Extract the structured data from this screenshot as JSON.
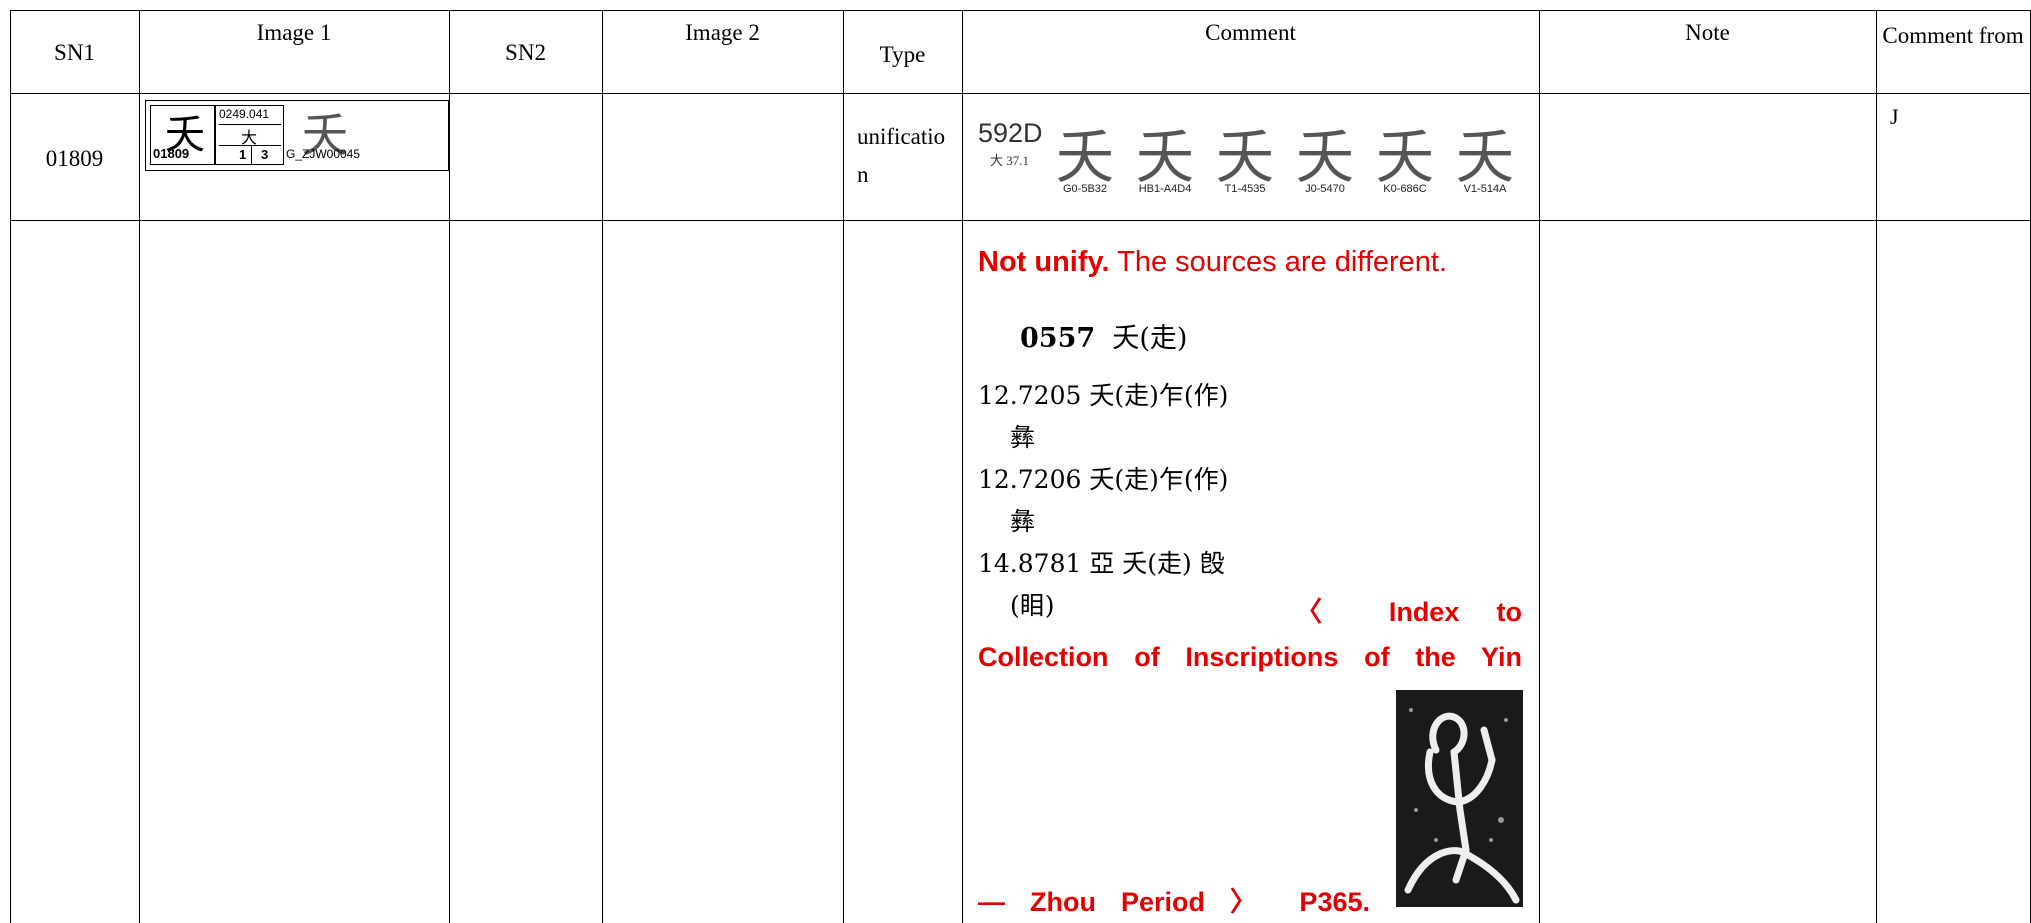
{
  "header": {
    "columns": [
      "SN1",
      "Image 1",
      "SN2",
      "Image 2",
      "Type",
      "Comment",
      "Note",
      "Comment from"
    ]
  },
  "rows": [
    {
      "sn1": "01809",
      "image1": {
        "glyph": "夭",
        "code": "0249.041",
        "radical": "大",
        "sn": "01809",
        "stroke_a": "1",
        "stroke_b": "3",
        "glyph2": "夭",
        "source": "G_ZJW00045"
      },
      "type": "unification",
      "comment": {
        "code": "592D",
        "radical": "大 37.1",
        "glyphs": [
          {
            "char": "夭",
            "source": "G0-5B32"
          },
          {
            "char": "夭",
            "source": "HB1-A4D4"
          },
          {
            "char": "夭",
            "source": "T1-4535"
          },
          {
            "char": "夭",
            "source": "J0-5470"
          },
          {
            "char": "夭",
            "source": "K0-686C"
          },
          {
            "char": "夭",
            "source": "V1-514A"
          }
        ]
      },
      "comment_from": "J"
    },
    {
      "comment": {
        "lead": "Not unify.",
        "text": "The sources are different.",
        "scan": {
          "entry": "0557",
          "entry_text": "夭(走)",
          "lines": [
            "12.7205 夭(走)乍(作)",
            "彝",
            "12.7206 夭(走)乍(作)",
            "彝",
            "14.8781 亞 夭(走) 𣪘",
            "(䀠)"
          ]
        },
        "reference_lines": [
          "〈 Index to",
          "Collection of Inscriptions of the Yin",
          "— Zhou Period 〉 P365."
        ]
      }
    }
  ]
}
